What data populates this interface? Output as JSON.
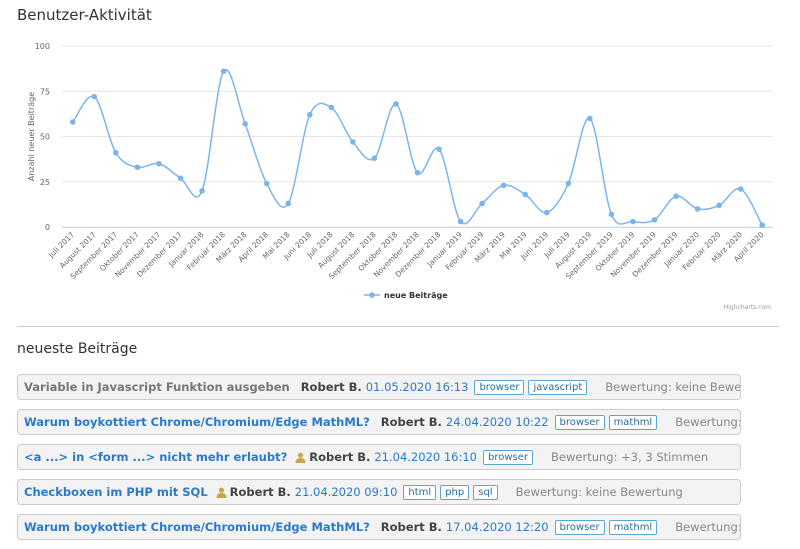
{
  "chart_data": {
    "type": "line",
    "title": "Benutzer-Aktivität",
    "y_label": "Anzahl neuer Beiträge",
    "categories": [
      "Juli 2017",
      "August 2017",
      "September 2017",
      "Oktober 2017",
      "November 2017",
      "Dezember 2017",
      "Januar 2018",
      "Februar 2018",
      "März 2018",
      "April 2018",
      "Mai 2018",
      "Juni 2018",
      "Juli 2018",
      "August 2018",
      "September 2018",
      "Oktober 2018",
      "November 2018",
      "Dezember 2018",
      "Januar 2019",
      "Februar 2019",
      "März 2019",
      "Mai 2019",
      "Juni 2019",
      "Juli 2019",
      "August 2019",
      "September 2019",
      "Oktober 2019",
      "November 2019",
      "Dezember 2019",
      "Januar 2020",
      "Februar 2020",
      "März 2020",
      "April 2020"
    ],
    "series": [
      {
        "name": "neue Beiträge",
        "color": "#7cb5ec",
        "values": [
          58,
          72,
          41,
          33,
          35,
          27,
          20,
          86,
          57,
          24,
          13,
          62,
          66,
          47,
          38,
          68,
          30,
          43,
          3,
          13,
          23,
          18,
          8,
          24,
          60,
          7,
          3,
          4,
          17,
          10,
          12,
          21,
          1
        ]
      }
    ],
    "ylim": [
      0,
      100
    ],
    "yticks": [
      0,
      25,
      50,
      75,
      100
    ],
    "grid": true,
    "smooth": true,
    "credits": "Highcharts.com"
  },
  "section": {
    "title": "neueste Beiträge"
  },
  "posts": [
    {
      "title": "Variable in Javascript Funktion ausgeben",
      "visited": true,
      "author": "Robert B.",
      "date": "01.05.2020 16:13",
      "tags": [
        "browser",
        "javascript"
      ],
      "rating": "Bewertung: keine Bewertung"
    },
    {
      "title": "Warum boykottiert Chrome/Chromium/Edge MathML?",
      "visited": false,
      "author": "Robert B.",
      "date": "24.04.2020 10:22",
      "tags": [
        "browser",
        "mathml"
      ],
      "rating": "Bewertung: keine Bewertung"
    },
    {
      "title": "<a ...> in <form ...> nicht mehr erlaubt?",
      "visited": false,
      "author": "Robert B.",
      "date": "21.04.2020 16:10",
      "tags": [
        "browser"
      ],
      "rating": "Bewertung: +3, 3 Stimmen"
    },
    {
      "title": "Checkboxen im PHP mit SQL",
      "visited": false,
      "author": "Robert B.",
      "date": "21.04.2020 09:10",
      "tags": [
        "html",
        "php",
        "sql"
      ],
      "rating": "Bewertung: keine Bewertung"
    },
    {
      "title": "Warum boykottiert Chrome/Chromium/Edge MathML?",
      "visited": false,
      "author": "Robert B.",
      "date": "17.04.2020 12:20",
      "tags": [
        "browser",
        "mathml"
      ],
      "rating": "Bewertung: keine Bewertung"
    }
  ]
}
